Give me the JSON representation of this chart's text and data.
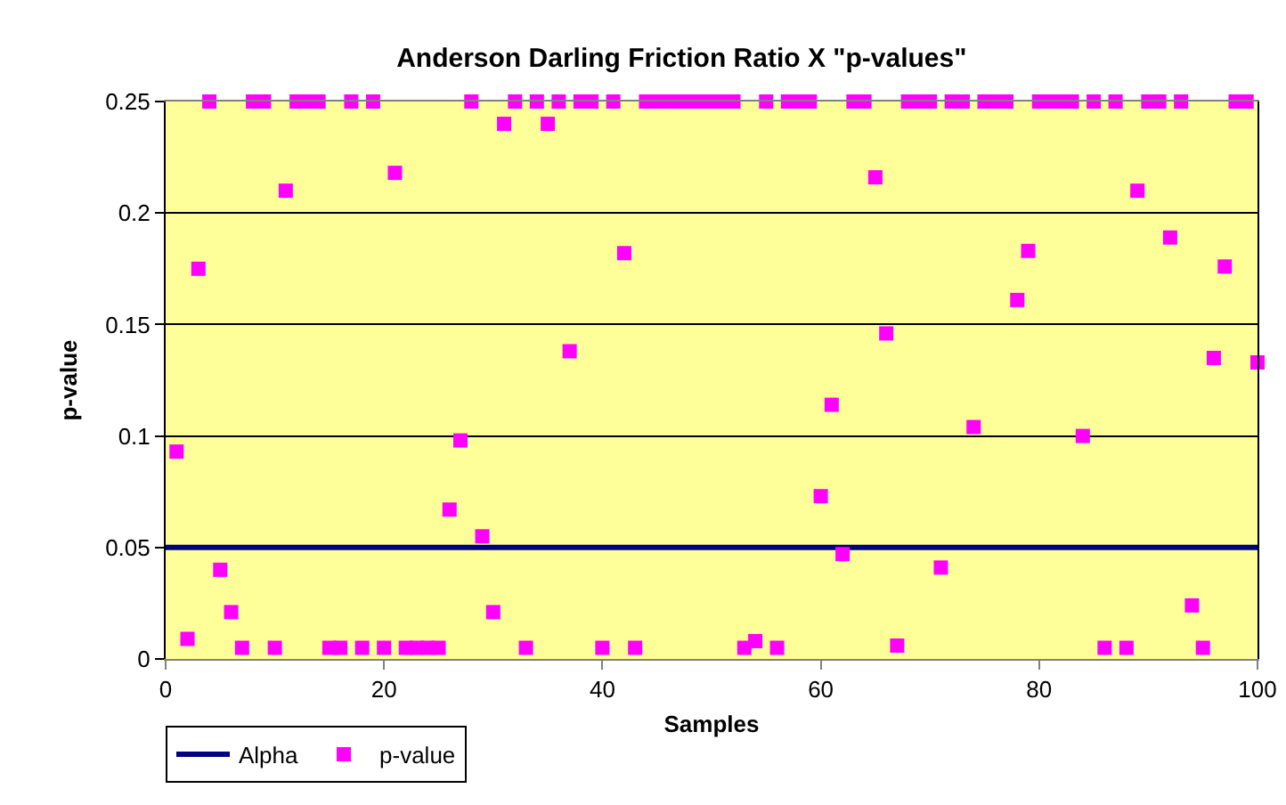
{
  "chart_data": {
    "type": "scatter",
    "title": "Anderson Darling Friction Ratio X \"p-values\"",
    "xlabel": "Samples",
    "ylabel": "p-value",
    "x": [
      1,
      2,
      3,
      4,
      5,
      6,
      7,
      8,
      9,
      10,
      11,
      12,
      13,
      14,
      15,
      16,
      17,
      18,
      19,
      20,
      21,
      22,
      23,
      24,
      25,
      26,
      27,
      28,
      29,
      30,
      31,
      32,
      33,
      34,
      35,
      36,
      37,
      38,
      39,
      40,
      41,
      42,
      43,
      44,
      45,
      46,
      47,
      48,
      49,
      50,
      51,
      52,
      53,
      54,
      55,
      56,
      57,
      58,
      59,
      60,
      61,
      62,
      63,
      64,
      65,
      66,
      67,
      68,
      69,
      70,
      71,
      72,
      73,
      74,
      75,
      76,
      77,
      78,
      79,
      80,
      81,
      82,
      83,
      84,
      85,
      86,
      87,
      88,
      89,
      90,
      91,
      92,
      93,
      94,
      95,
      96,
      97,
      98,
      99,
      100
    ],
    "series": [
      {
        "name": "Alpha",
        "type": "line",
        "color": "#000080",
        "x": [
          0,
          100
        ],
        "values": [
          0.05,
          0.05
        ],
        "marker": "none",
        "line_style": "solid"
      },
      {
        "name": "p-value",
        "type": "scatter",
        "color": "#ff00ff",
        "marker": "square",
        "values": [
          0.093,
          0.009,
          0.175,
          0.25,
          0.04,
          0.021,
          0.005,
          0.25,
          0.25,
          0.005,
          0.21,
          0.25,
          0.25,
          0.25,
          0.005,
          0.005,
          0.25,
          0.005,
          0.25,
          0.005,
          0.218,
          0.005,
          0.005,
          0.005,
          0.005,
          0.067,
          0.098,
          0.25,
          0.055,
          0.021,
          0.24,
          0.25,
          0.005,
          0.25,
          0.24,
          0.25,
          0.138,
          0.25,
          0.25,
          0.005,
          0.25,
          0.182,
          0.005,
          0.25,
          0.25,
          0.25,
          0.25,
          0.25,
          0.25,
          0.25,
          0.25,
          0.25,
          0.005,
          0.008,
          0.25,
          0.005,
          0.25,
          0.25,
          0.25,
          0.073,
          0.114,
          0.047,
          0.25,
          0.25,
          0.216,
          0.146,
          0.006,
          0.25,
          0.25,
          0.25,
          0.041,
          0.25,
          0.25,
          0.104,
          0.25,
          0.25,
          0.25,
          0.161,
          0.183,
          0.25,
          0.25,
          0.25,
          0.25,
          0.1,
          0.25,
          0.005,
          0.25,
          0.005,
          0.21,
          0.25,
          0.25,
          0.189,
          0.25,
          0.024,
          0.005,
          0.135,
          0.176,
          0.25,
          0.25,
          0.133
        ]
      }
    ],
    "xlim": [
      0,
      100
    ],
    "xticks": [
      0,
      20,
      40,
      60,
      80,
      100
    ],
    "ylim": [
      0,
      0.25
    ],
    "yticks": [
      0,
      0.05,
      0.1,
      0.15,
      0.2,
      0.25
    ],
    "grid": "y",
    "legend": "bottom left"
  }
}
